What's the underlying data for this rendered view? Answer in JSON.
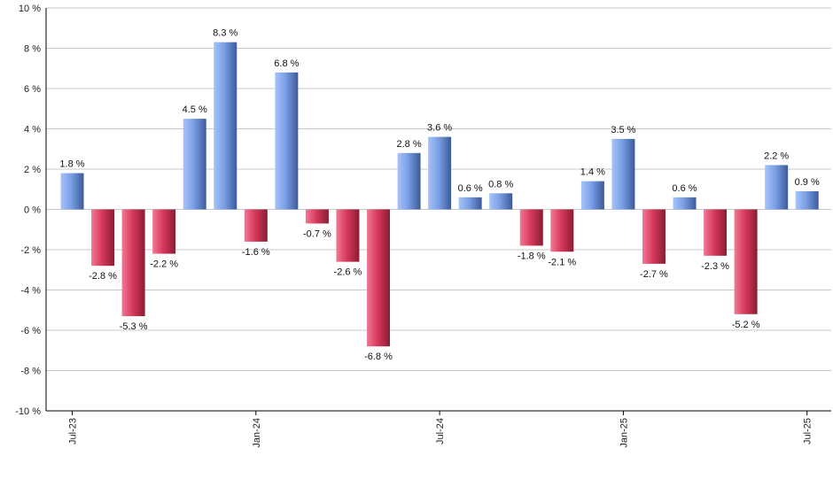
{
  "chart_data": {
    "type": "bar",
    "title": "",
    "xlabel": "",
    "ylabel": "",
    "ylim": [
      -10,
      10
    ],
    "yticks": [
      -10,
      -8,
      -6,
      -4,
      -2,
      0,
      2,
      4,
      6,
      8,
      10
    ],
    "ytick_suffix": " %",
    "grid": true,
    "x_tick_labels": [
      {
        "index": 0,
        "label": "Jul-23"
      },
      {
        "index": 6,
        "label": "Jan-24"
      },
      {
        "index": 12,
        "label": "Jul-24"
      },
      {
        "index": 18,
        "label": "Jan-25"
      },
      {
        "index": 24,
        "label": "Jul-25"
      }
    ],
    "categories": [
      "Jul-23",
      "Aug-23",
      "Sep-23",
      "Oct-23",
      "Nov-23",
      "Dec-23",
      "Jan-24",
      "Feb-24",
      "Mar-24",
      "Apr-24",
      "May-24",
      "Jun-24",
      "Jul-24",
      "Aug-24",
      "Sep-24",
      "Oct-24",
      "Nov-24",
      "Dec-24",
      "Jan-25",
      "Feb-25",
      "Mar-25",
      "Apr-25",
      "May-25",
      "Jun-25",
      "Jul-25"
    ],
    "values": [
      1.8,
      -2.8,
      -5.3,
      -2.2,
      4.5,
      8.3,
      -1.6,
      6.8,
      -0.7,
      -2.6,
      -6.8,
      2.8,
      3.6,
      0.6,
      0.8,
      -1.8,
      -2.1,
      1.4,
      3.5,
      -2.7,
      0.6,
      -2.3,
      -5.2,
      2.2,
      0.9
    ],
    "data_labels": [
      "1.8 %",
      "-2.8 %",
      "-5.3 %",
      "-2.2 %",
      "4.5 %",
      "8.3 %",
      "-1.6 %",
      "6.8 %",
      "-0.7 %",
      "-2.6 %",
      "-6.8 %",
      "2.8 %",
      "3.6 %",
      "0.6 %",
      "0.8 %",
      "-1.8 %",
      "-2.1 %",
      "1.4 %",
      "3.5 %",
      "-2.7 %",
      "0.6 %",
      "-2.3 %",
      "-5.2 %",
      "2.2 %",
      "0.9 %"
    ],
    "colors": {
      "positive_light": "#a6c4f8",
      "positive_mid": "#7a9fe6",
      "positive_dark": "#3b5a99",
      "negative_light": "#f07a96",
      "negative_mid": "#d83a5c",
      "negative_dark": "#8a1c34",
      "grid": "#c8c8c8",
      "axis": "#000000"
    }
  }
}
